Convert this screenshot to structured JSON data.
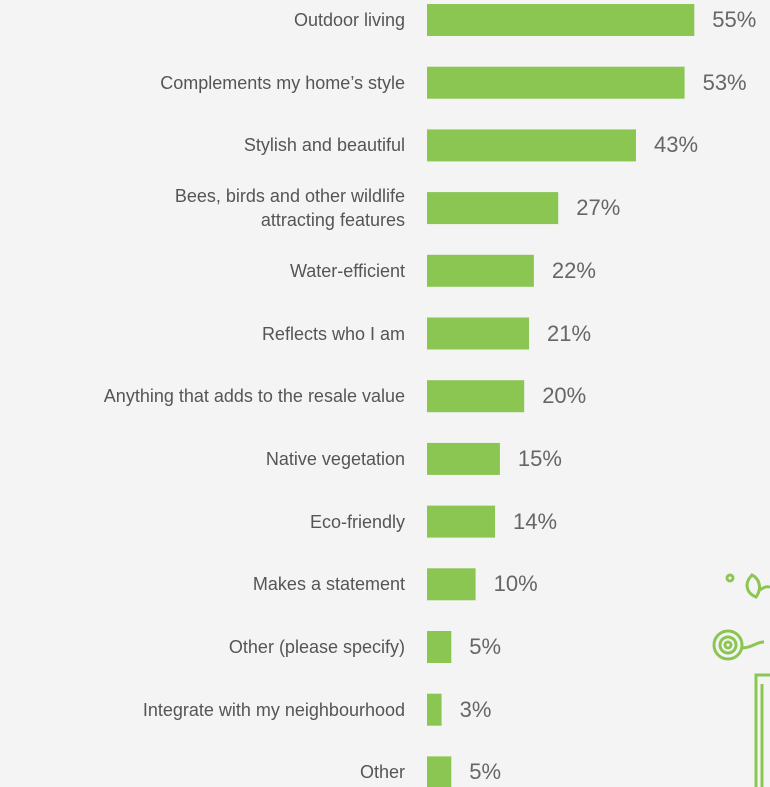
{
  "chart_data": {
    "type": "hbar",
    "categories": [
      "Outdoor living",
      "Complements my home’s style",
      "Stylish and beautiful",
      "Bees, birds and other wildlife\nattracting features",
      "Water-efficient",
      "Reflects who I am",
      "Anything that adds to the resale value",
      "Native vegetation",
      "Eco-friendly",
      "Makes a statement",
      "Other (please specify)",
      "Integrate with my neighbourhood",
      "Other"
    ],
    "values": [
      55,
      53,
      43,
      27,
      22,
      21,
      20,
      15,
      14,
      10,
      5,
      3,
      5
    ],
    "value_labels": [
      "55%",
      "53%",
      "43%",
      "27%",
      "22%",
      "21%",
      "20%",
      "15%",
      "14%",
      "10%",
      "5%",
      "3%",
      "5%"
    ],
    "color": "#8bc653"
  }
}
